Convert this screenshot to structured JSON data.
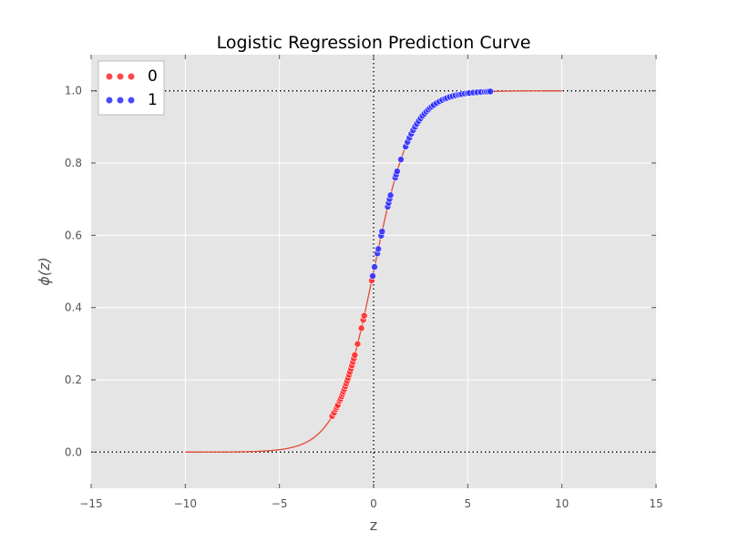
{
  "chart_data": {
    "type": "scatter",
    "title": "Logistic Regression Prediction Curve",
    "xlabel": "z",
    "ylabel": "ϕ(z)",
    "xlim": [
      -15,
      15
    ],
    "ylim": [
      -0.1,
      1.1
    ],
    "xticks": [
      -15,
      -10,
      -5,
      0,
      5,
      10,
      15
    ],
    "xtick_labels": [
      "−15",
      "−10",
      "−5",
      "0",
      "5",
      "10",
      "15"
    ],
    "yticks": [
      0.0,
      0.2,
      0.4,
      0.6,
      0.8,
      1.0
    ],
    "ytick_labels": [
      "0.0",
      "0.2",
      "0.4",
      "0.6",
      "0.8",
      "1.0"
    ],
    "grid": true,
    "legend_position": "top-left",
    "reference_lines": {
      "horizontal": [
        0.0,
        1.0
      ],
      "vertical": [
        0.0
      ],
      "style": "dotted"
    },
    "curve": {
      "function": "sigmoid",
      "x_range": [
        -10,
        10
      ],
      "color": "#e24a33"
    },
    "series": [
      {
        "name": "0",
        "color": "#ff2a2a",
        "x": [
          -2.2,
          -2.1,
          -2.0,
          -1.95,
          -1.9,
          -1.8,
          -1.75,
          -1.7,
          -1.65,
          -1.6,
          -1.55,
          -1.5,
          -1.45,
          -1.4,
          -1.35,
          -1.3,
          -1.25,
          -1.2,
          -1.15,
          -1.1,
          -1.05,
          -1.0,
          -0.85,
          -0.65,
          -0.55,
          -0.5,
          -0.1
        ]
      },
      {
        "name": "1",
        "color": "#2a2aff",
        "x": [
          -0.05,
          0.05,
          0.2,
          0.25,
          0.4,
          0.45,
          0.75,
          0.8,
          0.85,
          0.9,
          1.15,
          1.2,
          1.25,
          1.45,
          1.7,
          1.8,
          1.9,
          2.0,
          2.1,
          2.2,
          2.3,
          2.4,
          2.5,
          2.6,
          2.7,
          2.8,
          2.9,
          3.0,
          3.1,
          3.2,
          3.35,
          3.5,
          3.65,
          3.8,
          3.9,
          4.05,
          4.2,
          4.35,
          4.5,
          4.6,
          4.7,
          4.85,
          5.0,
          5.1,
          5.3,
          5.5,
          5.7,
          5.9,
          6.0,
          6.1,
          6.2
        ]
      }
    ]
  }
}
